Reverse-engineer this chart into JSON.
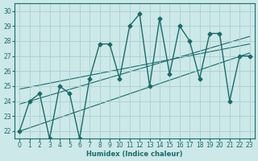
{
  "xlabel": "Humidex (Indice chaleur)",
  "bg_color": "#cce8e8",
  "grid_color": "#aacece",
  "line_color": "#1a6b6b",
  "x_data": [
    0,
    1,
    2,
    3,
    4,
    5,
    6,
    7,
    8,
    9,
    10,
    11,
    12,
    13,
    14,
    15,
    16,
    17,
    18,
    19,
    20,
    21,
    22,
    23
  ],
  "y_data": [
    22,
    24,
    24.5,
    21.5,
    25,
    24.5,
    21.5,
    25.5,
    27.8,
    27.8,
    25.5,
    29,
    29.8,
    25,
    29.5,
    25.8,
    29,
    28,
    25.5,
    28.5,
    28.5,
    24,
    27,
    27
  ],
  "xlim": [
    -0.5,
    23.5
  ],
  "ylim": [
    21.5,
    30.5
  ],
  "yticks": [
    22,
    23,
    24,
    25,
    26,
    27,
    28,
    29,
    30
  ],
  "xticks": [
    0,
    1,
    2,
    3,
    4,
    5,
    6,
    7,
    8,
    9,
    10,
    11,
    12,
    13,
    14,
    15,
    16,
    17,
    18,
    19,
    20,
    21,
    22,
    23
  ],
  "marker": "D",
  "markersize": 2.5,
  "linewidth": 1.0,
  "trend_lines": [
    {
      "x": [
        0,
        23
      ],
      "y": [
        22.0,
        27.2
      ]
    },
    {
      "x": [
        0,
        23
      ],
      "y": [
        23.8,
        28.3
      ]
    },
    {
      "x": [
        0,
        23
      ],
      "y": [
        24.8,
        27.8
      ]
    }
  ]
}
